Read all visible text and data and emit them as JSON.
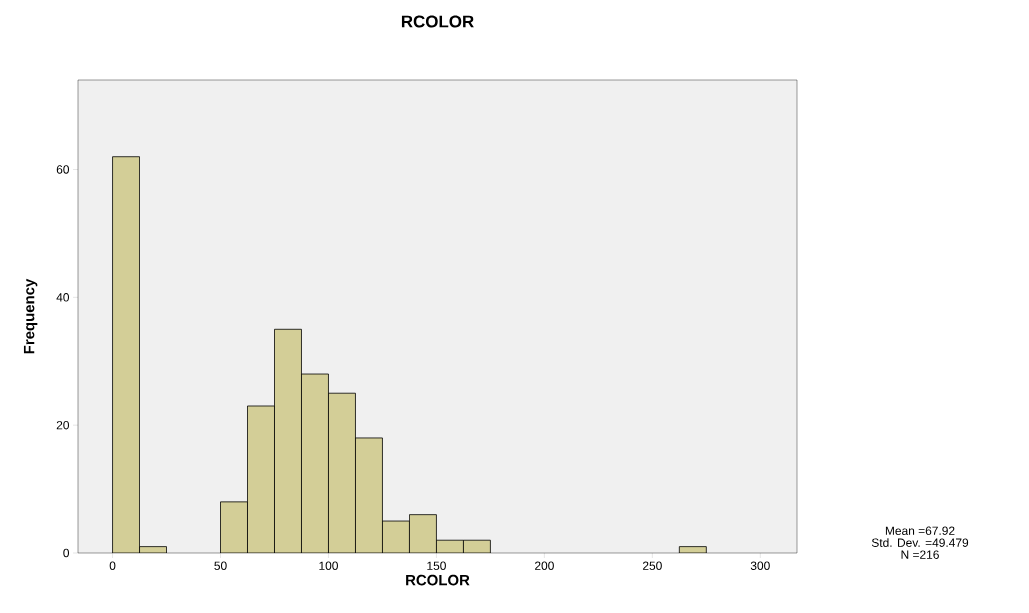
{
  "chart_data": {
    "type": "histogram",
    "title": "RCOLOR",
    "xlabel": "RCOLOR",
    "ylabel": "Frequency",
    "bins": [
      0,
      12.5,
      25,
      37.5,
      50,
      62.5,
      75,
      87.5,
      100,
      112.5,
      125,
      137.5,
      150,
      162.5,
      175,
      187.5,
      200,
      212.5,
      225,
      237.5,
      250,
      262.5,
      275
    ],
    "values": [
      62,
      1,
      0,
      0,
      8,
      23,
      35,
      28,
      25,
      18,
      5,
      6,
      2,
      2,
      0,
      0,
      0,
      0,
      0,
      0,
      0,
      1
    ],
    "color": "#d3ce97",
    "xlim": [
      -16,
      317
    ],
    "ylim": [
      0,
      74
    ],
    "xticks": [
      0,
      50,
      100,
      150,
      200,
      250,
      300
    ],
    "yticks": [
      0,
      20,
      40,
      60
    ],
    "grid": false,
    "annotations": [
      "Mean =67.92",
      "Std. Dev. =49.479",
      "N =216"
    ]
  }
}
